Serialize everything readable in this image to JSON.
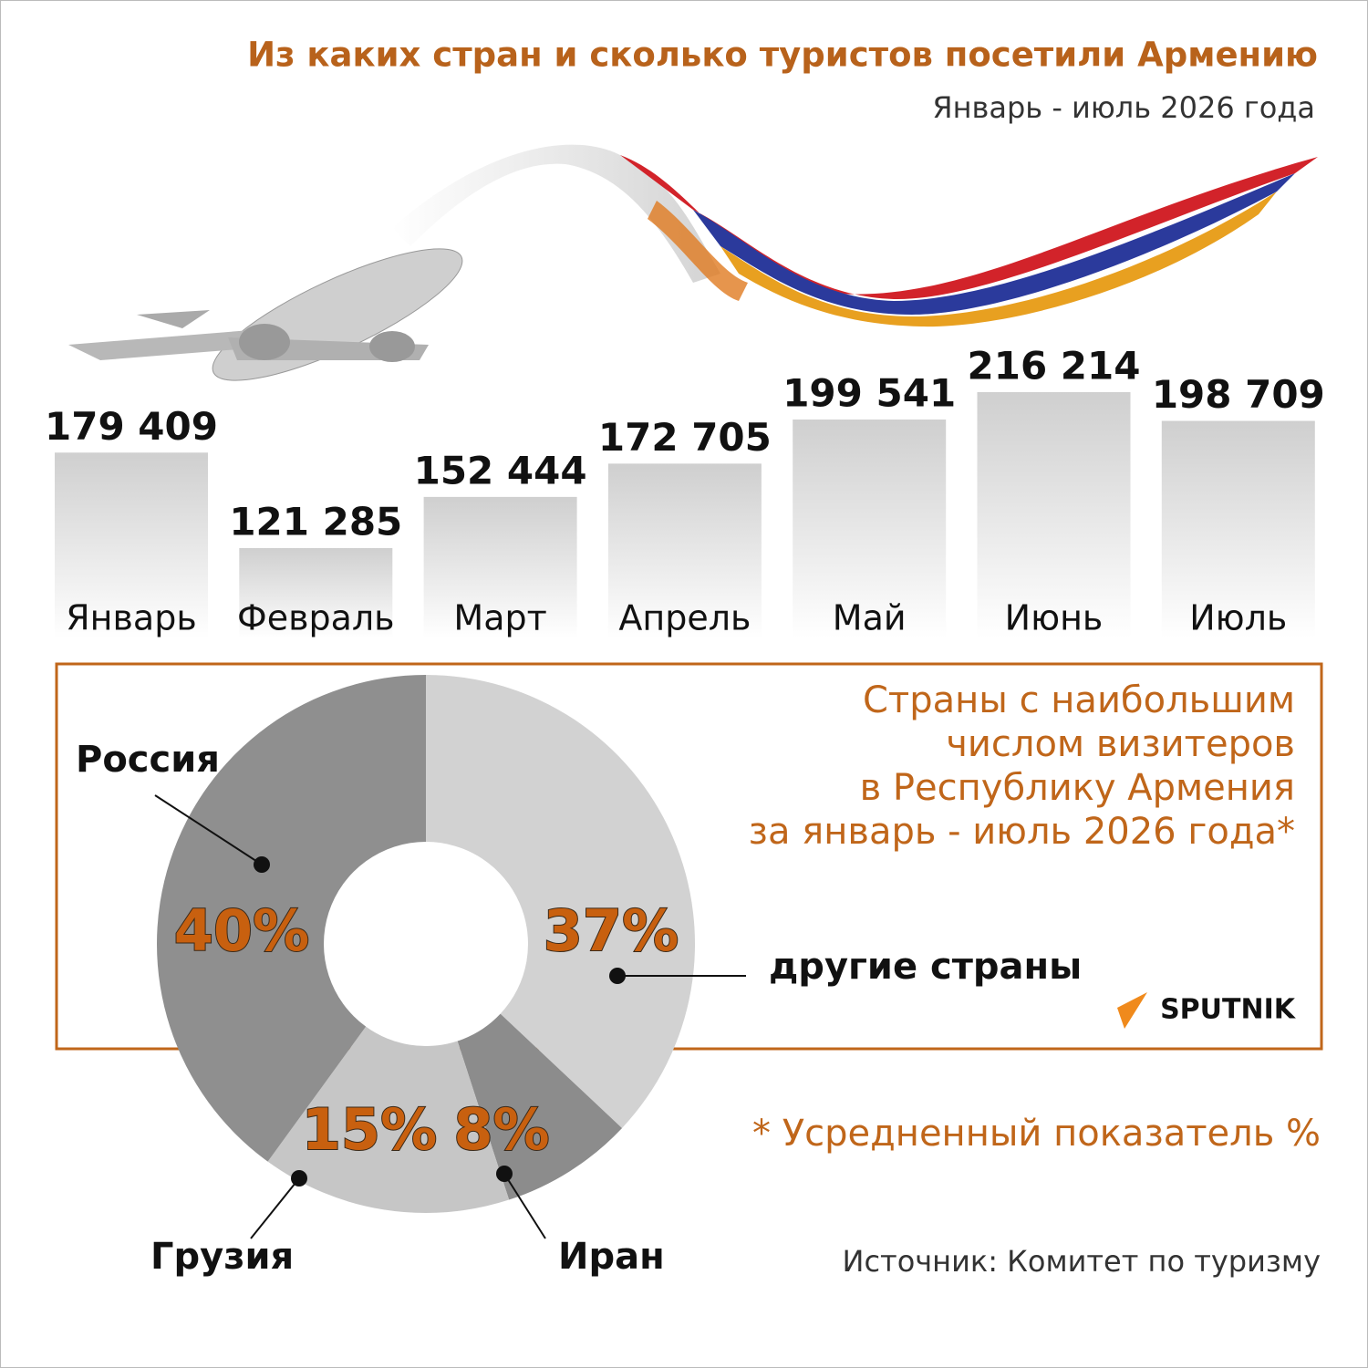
{
  "header": {
    "title": "Из каких стран и сколько туристов посетили Армению",
    "subtitle": "Январь - июль 2026 года"
  },
  "chart_data": [
    {
      "type": "bar",
      "categories": [
        "Январь",
        "Февраль",
        "Март",
        "Апрель",
        "Май",
        "Июнь",
        "Июль"
      ],
      "values": [
        179409,
        121285,
        152444,
        172705,
        199541,
        216214,
        198709
      ],
      "value_labels": [
        "179 409",
        "121 285",
        "152 444",
        "172 705",
        "199 541",
        "216 214",
        "198 709"
      ]
    },
    {
      "type": "donut",
      "title_lines": [
        "Страны с наибольшим",
        "числом визитеров",
        "в Республику Армения",
        "за январь - июль 2026 года*"
      ],
      "categories": [
        "другие страны",
        "Иран",
        "Грузия",
        "Россия"
      ],
      "values": [
        37,
        8,
        15,
        40
      ],
      "value_labels": [
        "37%",
        "8%",
        "15%",
        "40%"
      ],
      "colors": [
        "#d2d2d2",
        "#8c8c8c",
        "#c6c6c6",
        "#8f8f8f"
      ]
    }
  ],
  "logo": "SPUTNIK",
  "footnote": "* Усредненный показатель %",
  "source": "Источник: Комитет по туризму"
}
